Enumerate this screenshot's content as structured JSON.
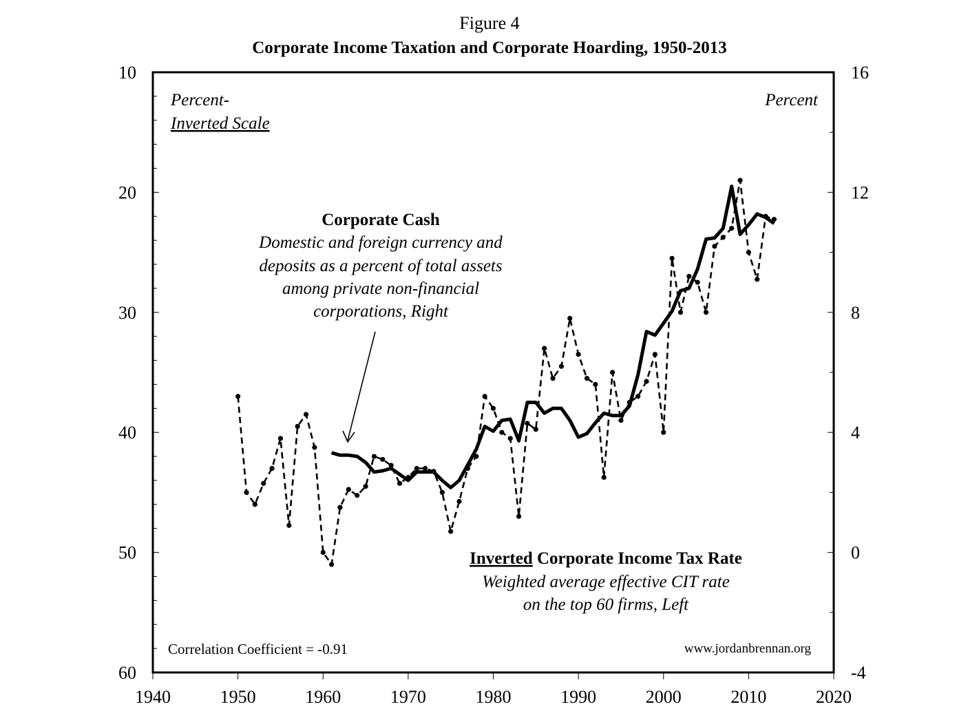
{
  "chart_data": {
    "type": "line",
    "figure_label": "Figure 4",
    "title": "Corporate Income Taxation and Corporate Hoarding, 1950-2013",
    "left_axis": {
      "label_line1": "Percent-",
      "label_line2": "Inverted Scale",
      "ylim": [
        10,
        60
      ],
      "inverted": true,
      "ticks": [
        "10",
        "20",
        "30",
        "40",
        "50",
        "60"
      ]
    },
    "right_axis": {
      "label": "Percent",
      "ylim": [
        -4,
        16
      ],
      "ticks": [
        "16",
        "12",
        "8",
        "4",
        "0",
        "-4"
      ]
    },
    "x_axis": {
      "xlim": [
        1940,
        2020
      ],
      "ticks": [
        "1940",
        "1950",
        "1960",
        "1970",
        "1980",
        "1990",
        "2000",
        "2010",
        "2020"
      ]
    },
    "series": [
      {
        "name": "Inverted Corporate Income Tax Rate",
        "axis": "left",
        "style": "solid-thick",
        "x": [
          1961,
          1962,
          1963,
          1964,
          1965,
          1966,
          1967,
          1968,
          1969,
          1970,
          1971,
          1972,
          1973,
          1974,
          1975,
          1976,
          1977,
          1978,
          1979,
          1980,
          1981,
          1982,
          1983,
          1984,
          1985,
          1986,
          1987,
          1988,
          1989,
          1990,
          1991,
          1992,
          1993,
          1994,
          1995,
          1996,
          1997,
          1998,
          1999,
          2000,
          2001,
          2002,
          2003,
          2004,
          2005,
          2006,
          2007,
          2008,
          2009,
          2010,
          2011,
          2012,
          2013
        ],
        "y": [
          41.7,
          41.9,
          41.9,
          42.0,
          42.5,
          43.3,
          43.2,
          43.0,
          43.5,
          44.0,
          43.3,
          43.3,
          43.3,
          44.0,
          44.6,
          44.0,
          42.7,
          41.4,
          39.5,
          39.9,
          39.0,
          38.9,
          40.7,
          37.5,
          37.5,
          38.4,
          38.0,
          38.0,
          39.0,
          40.4,
          40.1,
          39.2,
          38.4,
          38.6,
          38.6,
          37.8,
          35.2,
          31.6,
          31.9,
          30.9,
          29.9,
          28.2,
          28.0,
          26.4,
          23.9,
          23.8,
          23.0,
          19.5,
          23.5,
          22.7,
          21.8,
          22.1,
          22.6
        ]
      },
      {
        "name": "Corporate Cash",
        "axis": "right",
        "style": "dashed-dotted",
        "x": [
          1950,
          1951,
          1952,
          1953,
          1954,
          1955,
          1956,
          1957,
          1958,
          1959,
          1960,
          1961,
          1962,
          1963,
          1964,
          1965,
          1966,
          1967,
          1968,
          1969,
          1970,
          1971,
          1972,
          1973,
          1974,
          1975,
          1976,
          1977,
          1978,
          1979,
          1980,
          1981,
          1982,
          1983,
          1984,
          1985,
          1986,
          1987,
          1988,
          1989,
          1990,
          1991,
          1992,
          1993,
          1994,
          1995,
          1996,
          1997,
          1998,
          1999,
          2000,
          2001,
          2002,
          2003,
          2004,
          2005,
          2006,
          2007,
          2008,
          2009,
          2010,
          2011,
          2012,
          2013
        ],
        "y": [
          5.2,
          2.0,
          1.6,
          2.3,
          2.8,
          3.8,
          0.9,
          4.2,
          4.6,
          3.5,
          0.0,
          -0.4,
          1.5,
          2.1,
          1.9,
          2.2,
          3.2,
          3.1,
          2.9,
          2.3,
          2.5,
          2.8,
          2.8,
          2.7,
          2.0,
          0.7,
          1.7,
          2.8,
          3.2,
          5.2,
          4.8,
          4.0,
          3.8,
          1.2,
          4.3,
          4.1,
          6.8,
          5.8,
          6.2,
          7.8,
          6.6,
          5.8,
          5.6,
          2.5,
          6.0,
          4.4,
          5.0,
          5.2,
          5.7,
          6.6,
          4.0,
          9.8,
          8.0,
          9.2,
          9.0,
          8.0,
          10.2,
          10.5,
          10.8,
          12.4,
          10.0,
          9.1,
          11.2,
          11.1
        ]
      }
    ],
    "annotations": {
      "cash_title": "Corporate Cash",
      "cash_line1": "Domestic and foreign currency and",
      "cash_line2": "deposits as a percent of total assets",
      "cash_line3": "among private non-financial",
      "cash_line4": "corporations, Right",
      "tax_title_underlined": "Inverted",
      "tax_title_rest": " Corporate Income Tax  Rate",
      "tax_line1": "Weighted average effective CIT rate",
      "tax_line2": "on the  top 60 firms, Left",
      "correlation": "Correlation Coefficient = -0.91",
      "website": "www.jordanbrennan.org"
    },
    "grid": false,
    "legend": "none (inline annotations)"
  }
}
